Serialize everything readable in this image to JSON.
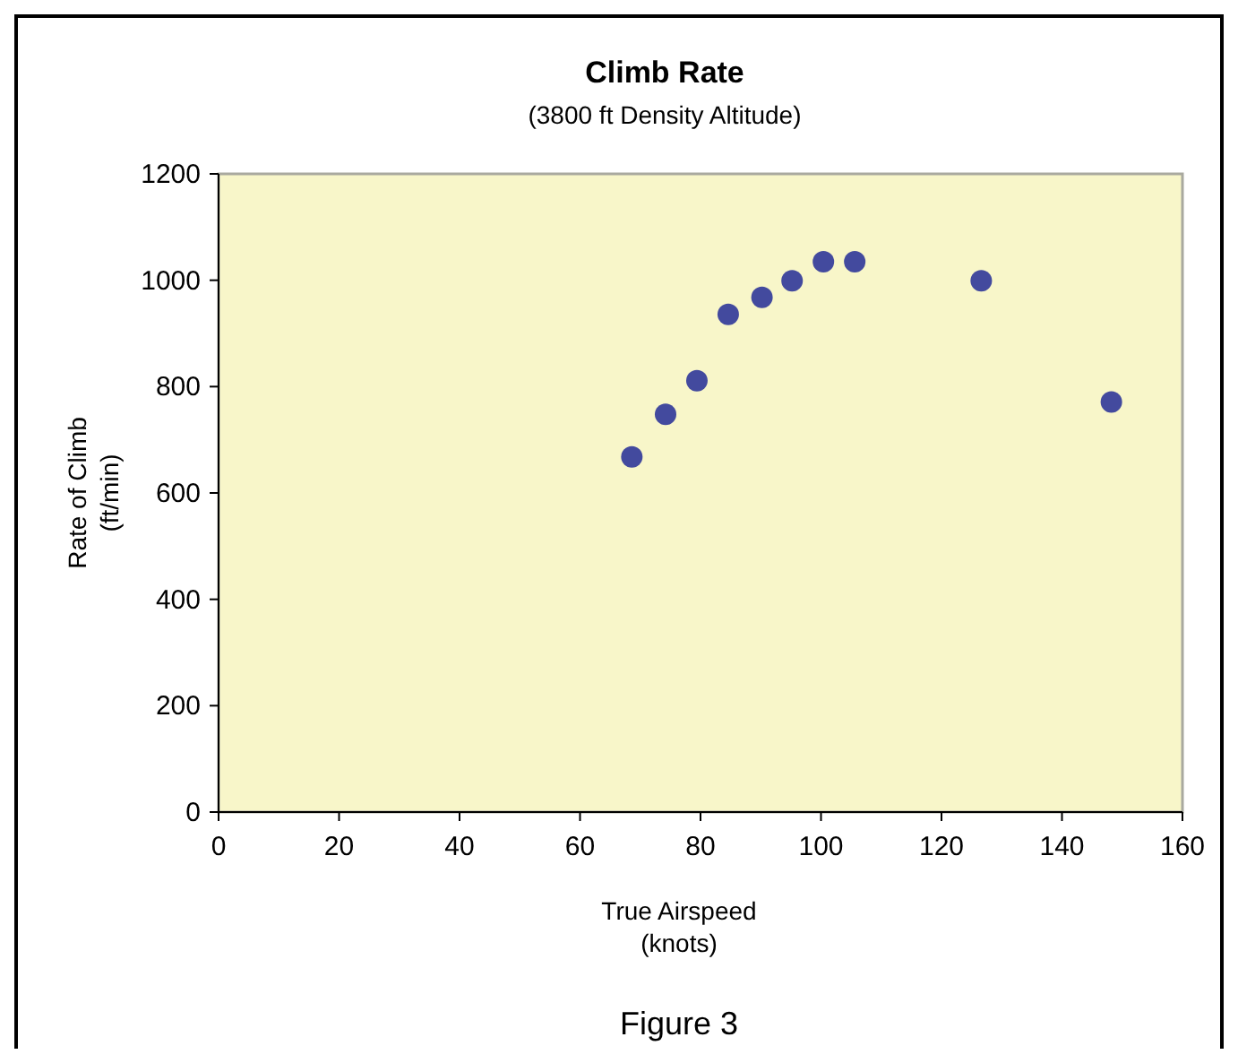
{
  "chart_data": {
    "type": "scatter",
    "title": "Climb Rate",
    "subtitle": "(3800 ft Density Altitude)",
    "xlabel": "True Airspeed\n(knots)",
    "ylabel": "Rate of Climb\n(ft/min)",
    "annotations": [
      "Figure 3"
    ],
    "x": [
      68.6,
      74.2,
      79.4,
      84.6,
      90.2,
      95.2,
      100.4,
      105.6,
      126.6,
      148.2
    ],
    "series": [
      {
        "color": "#434a9e",
        "values": [
          668,
          748,
          811,
          936,
          968,
          999,
          1035,
          1035,
          999,
          771
        ]
      }
    ],
    "xlim": [
      0,
      160
    ],
    "xticks": [
      0,
      20,
      40,
      60,
      80,
      100,
      120,
      140,
      160
    ],
    "ylim": [
      0,
      1200
    ],
    "yticks": [
      0,
      200,
      400,
      600,
      800,
      1000,
      1200
    ],
    "grid": false,
    "marker": "circle"
  }
}
